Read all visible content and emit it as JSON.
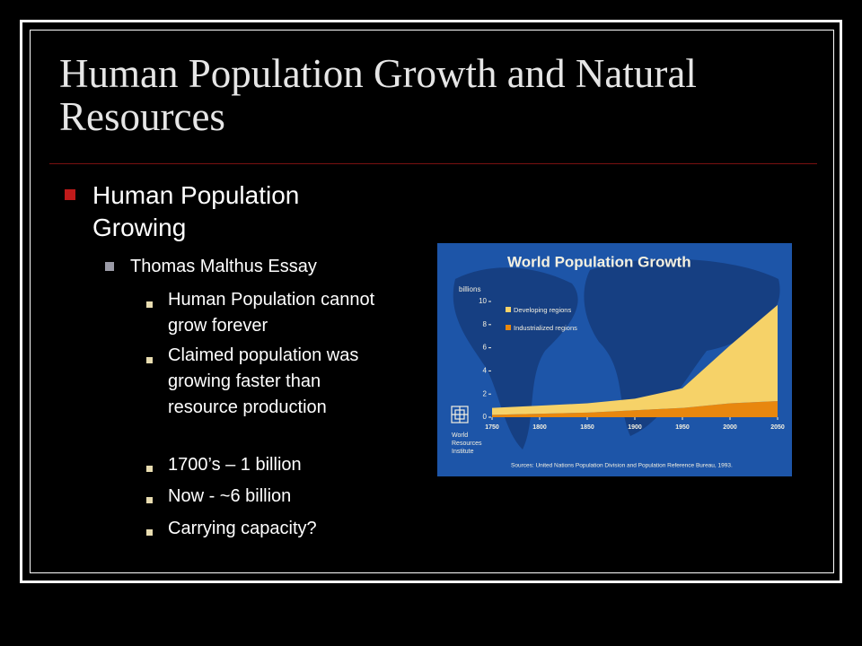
{
  "slide": {
    "title": "Human Population Growth and Natural Resources",
    "bullets": [
      {
        "text": "Human Population Growing",
        "children": [
          {
            "text": "Thomas Malthus Essay",
            "children": [
              {
                "text": "Human Population cannot grow forever"
              },
              {
                "text": "Claimed population was growing faster than resource production"
              },
              {
                "text": "1700’s – 1 billion"
              },
              {
                "text": "Now - ~6 billion"
              },
              {
                "text": "Carrying capacity?"
              }
            ]
          }
        ]
      }
    ],
    "figure": {
      "chart_data": {
        "type": "stacked-area",
        "title": "World Population Growth",
        "y_label": "billions",
        "x": [
          1750,
          1800,
          1850,
          1900,
          1950,
          2000,
          2050
        ],
        "series": [
          {
            "name": "Industrialized regions",
            "color": "#e8870e",
            "values": [
              0.2,
              0.3,
              0.4,
              0.6,
              0.8,
              1.2,
              1.4
            ]
          },
          {
            "name": "Developing regions",
            "color": "#f6d268",
            "values": [
              0.6,
              0.7,
              0.8,
              1.0,
              1.7,
              5.0,
              8.3
            ]
          }
        ],
        "xlim": [
          1750,
          2050
        ],
        "xticks": [
          1750,
          1800,
          1850,
          1900,
          1950,
          2000,
          2050
        ],
        "ylim": [
          0,
          10
        ],
        "yticks": [
          0,
          2,
          4,
          6,
          8,
          10
        ],
        "source": "Sources: United Nations Population Division and Population Reference Bureau, 1993."
      },
      "logo_text": [
        "World",
        "Resources",
        "Institute"
      ]
    }
  }
}
